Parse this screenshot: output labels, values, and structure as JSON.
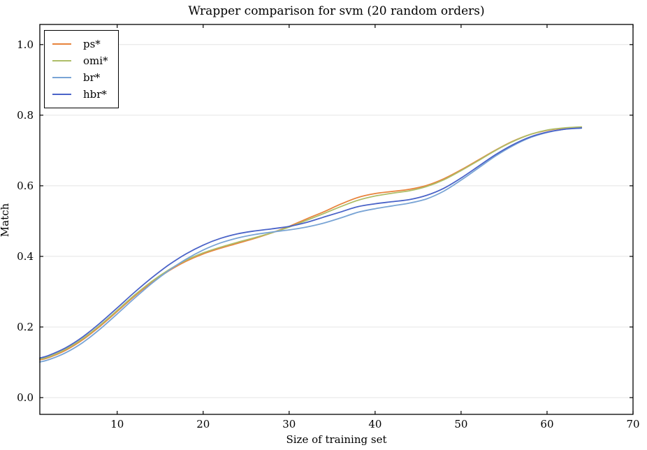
{
  "chart_data": {
    "type": "line",
    "title": "Wrapper comparison for svm (20 random orders)",
    "xlabel": "Size of training set",
    "ylabel": "Match",
    "xlim": [
      1,
      70
    ],
    "ylim": [
      -0.0475,
      1.057
    ],
    "xticks": [
      10,
      20,
      30,
      40,
      50,
      60,
      70
    ],
    "xtick_labels": [
      "10",
      "20",
      "30",
      "40",
      "50",
      "60",
      "70"
    ],
    "yticks": [
      0.0,
      0.2,
      0.4,
      0.6,
      0.8,
      1.0
    ],
    "ytick_labels": [
      "0.0",
      "0.2",
      "0.4",
      "0.6",
      "0.8",
      "1.0"
    ],
    "grid": "horizontal",
    "grid_color": "#e4e4e4",
    "spine_color": "#000000",
    "legend_position": "upper-left",
    "x": [
      1,
      2,
      4,
      6,
      8,
      10,
      12,
      14,
      16,
      18,
      20,
      22,
      24,
      26,
      28,
      30,
      32,
      34,
      36,
      38,
      40,
      42,
      44,
      46,
      48,
      50,
      52,
      54,
      56,
      58,
      60,
      62,
      64
    ],
    "series": [
      {
        "name": "ps*",
        "color": "#e8833c",
        "values": [
          0.107,
          0.113,
          0.134,
          0.164,
          0.202,
          0.244,
          0.287,
          0.326,
          0.359,
          0.386,
          0.407,
          0.423,
          0.437,
          0.451,
          0.467,
          0.485,
          0.506,
          0.526,
          0.548,
          0.567,
          0.578,
          0.584,
          0.59,
          0.601,
          0.62,
          0.645,
          0.673,
          0.701,
          0.726,
          0.745,
          0.757,
          0.763,
          0.766
        ]
      },
      {
        "name": "omi*",
        "color": "#aebd68",
        "values": [
          0.109,
          0.115,
          0.137,
          0.167,
          0.205,
          0.247,
          0.29,
          0.329,
          0.362,
          0.389,
          0.41,
          0.426,
          0.44,
          0.453,
          0.467,
          0.483,
          0.502,
          0.521,
          0.541,
          0.559,
          0.571,
          0.579,
          0.586,
          0.598,
          0.617,
          0.643,
          0.671,
          0.7,
          0.725,
          0.745,
          0.758,
          0.764,
          0.767
        ]
      },
      {
        "name": "br*",
        "color": "#79a4d5",
        "values": [
          0.101,
          0.107,
          0.127,
          0.156,
          0.194,
          0.237,
          0.281,
          0.323,
          0.36,
          0.392,
          0.418,
          0.438,
          0.452,
          0.462,
          0.469,
          0.475,
          0.483,
          0.494,
          0.509,
          0.525,
          0.535,
          0.543,
          0.551,
          0.563,
          0.585,
          0.616,
          0.65,
          0.684,
          0.713,
          0.736,
          0.751,
          0.76,
          0.763
        ]
      },
      {
        "name": "hbr*",
        "color": "#4a63c8",
        "values": [
          0.112,
          0.119,
          0.141,
          0.172,
          0.211,
          0.254,
          0.298,
          0.339,
          0.376,
          0.407,
          0.432,
          0.451,
          0.464,
          0.472,
          0.478,
          0.485,
          0.496,
          0.511,
          0.526,
          0.541,
          0.549,
          0.555,
          0.561,
          0.573,
          0.593,
          0.622,
          0.655,
          0.688,
          0.716,
          0.738,
          0.752,
          0.76,
          0.764
        ]
      }
    ]
  }
}
